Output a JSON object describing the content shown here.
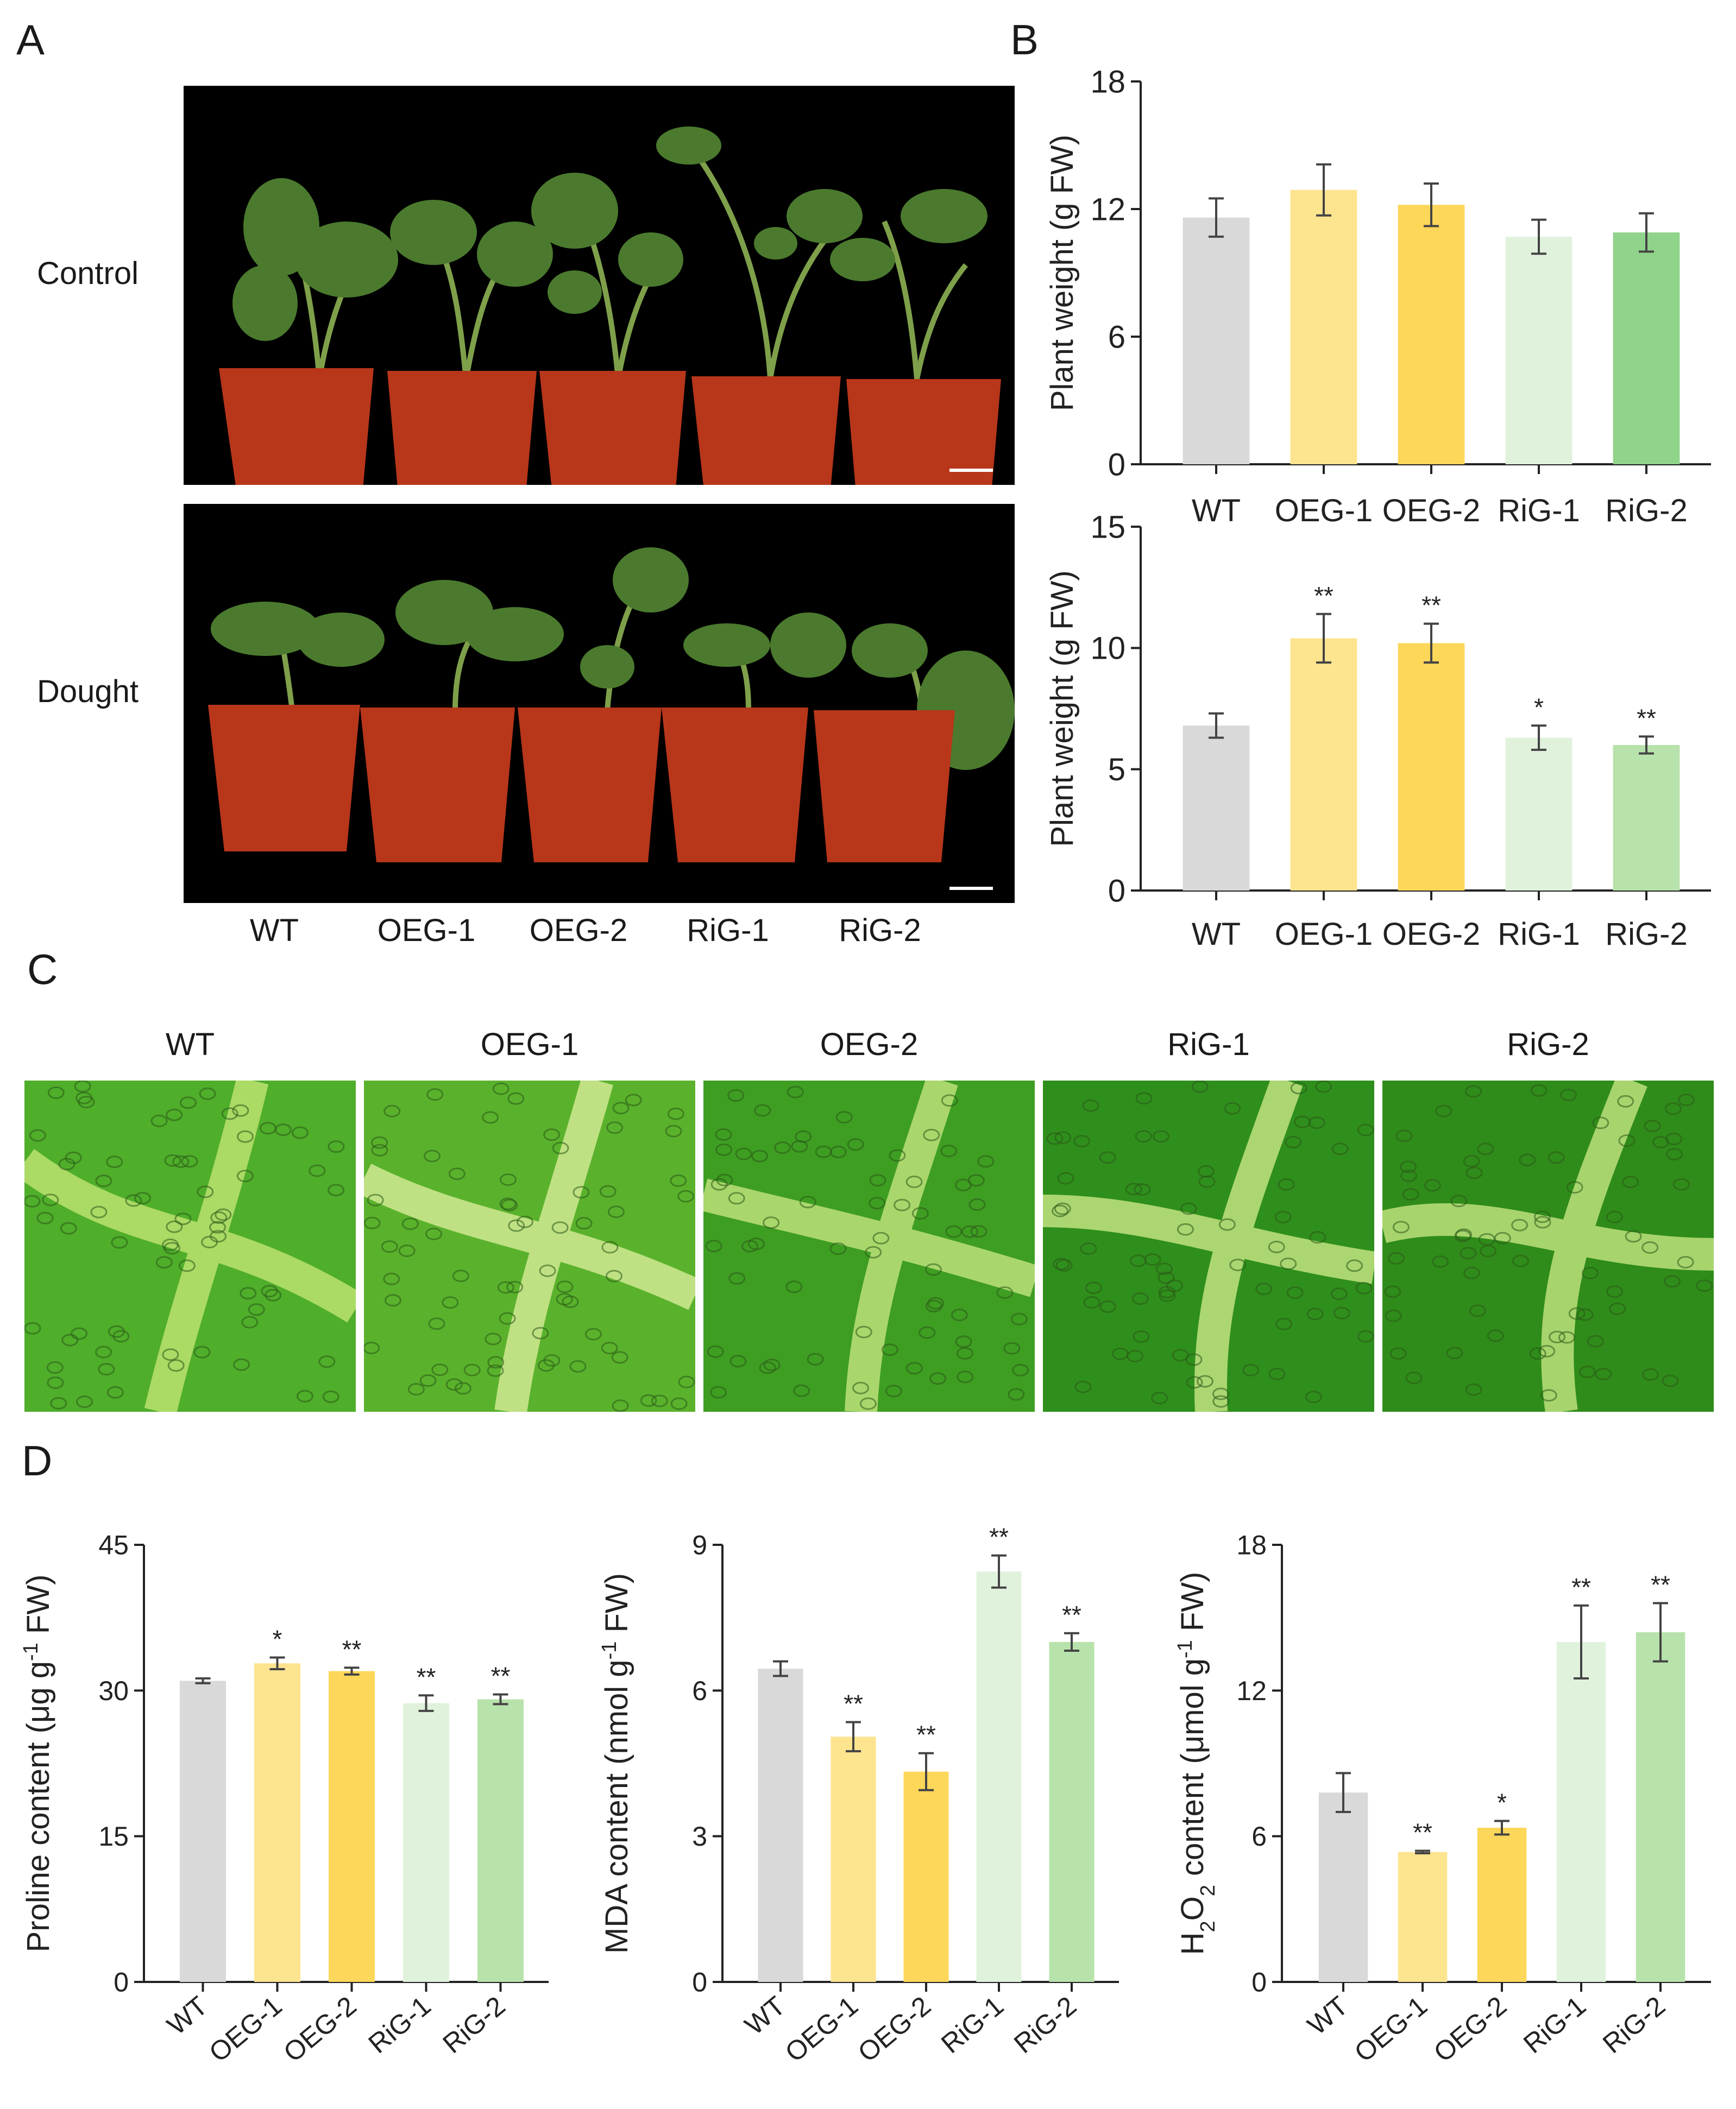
{
  "panels": {
    "a": "A",
    "b": "B",
    "c": "C",
    "d": "D"
  },
  "photos": {
    "row_labels": [
      "Control",
      "Dought"
    ],
    "genotype_labels": [
      "WT",
      "OEG-1",
      "OEG-2",
      "RiG-1",
      "RiG-2"
    ]
  },
  "micrographs": {
    "labels": [
      "WT",
      "OEG-1",
      "OEG-2",
      "RiG-1",
      "RiG-2"
    ]
  },
  "colors": {
    "WT": "#d9d9d9",
    "OEG-1": "#fde48f",
    "OEG-2": "#fdd75a",
    "RiG-1": "#e1f2dc",
    "RiG-2": "#b8e2ab",
    "RiG-2-control": "#90d38a",
    "axis": "#222222",
    "error": "#444444"
  },
  "chart_data": [
    {
      "id": "b-control",
      "type": "bar",
      "title": "",
      "categories": [
        "WT",
        "OEG-1",
        "OEG-2",
        "RiG-1",
        "RiG-2"
      ],
      "values": [
        11.6,
        12.9,
        12.2,
        10.7,
        10.9
      ],
      "errors": [
        0.9,
        1.2,
        1.0,
        0.8,
        0.9
      ],
      "significance": [
        "",
        "",
        "",
        "",
        ""
      ],
      "ylabel": "Plant weight (g FW)",
      "ylim": [
        0,
        18
      ],
      "yticks": [
        "0",
        "6",
        "12",
        "18"
      ],
      "colors": [
        "#d9d9d9",
        "#fde48f",
        "#fdd75a",
        "#e1f2dc",
        "#90d38a"
      ]
    },
    {
      "id": "b-drought",
      "type": "bar",
      "title": "",
      "categories": [
        "WT",
        "OEG-1",
        "OEG-2",
        "RiG-1",
        "RiG-2"
      ],
      "values": [
        6.8,
        10.4,
        10.2,
        6.3,
        6.0
      ],
      "errors": [
        0.5,
        1.0,
        0.8,
        0.5,
        0.35
      ],
      "significance": [
        "",
        "**",
        "**",
        "*",
        "**"
      ],
      "ylabel": "Plant weight (g FW)",
      "ylim": [
        0,
        15
      ],
      "yticks": [
        "0",
        "5",
        "10",
        "15"
      ],
      "colors": [
        "#d9d9d9",
        "#fde48f",
        "#fdd75a",
        "#e1f2dc",
        "#b8e2ab"
      ]
    },
    {
      "id": "d-proline",
      "type": "bar",
      "title": "",
      "categories": [
        "WT",
        "OEG-1",
        "OEG-2",
        "RiG-1",
        "RiG-2"
      ],
      "values": [
        31.0,
        32.8,
        32.0,
        28.7,
        29.1
      ],
      "errors": [
        0.25,
        0.6,
        0.35,
        0.8,
        0.5
      ],
      "significance": [
        "",
        "*",
        "**",
        "**",
        "**"
      ],
      "ylabel_parts": [
        "Proline content (μg g",
        "-1",
        " FW)"
      ],
      "ylim": [
        0,
        45
      ],
      "yticks": [
        "0",
        "15",
        "30",
        "45"
      ],
      "colors": [
        "#d9d9d9",
        "#fde48f",
        "#fdd75a",
        "#e1f2dc",
        "#b8e2ab"
      ]
    },
    {
      "id": "d-mda",
      "type": "bar",
      "title": "",
      "categories": [
        "WT",
        "OEG-1",
        "OEG-2",
        "RiG-1",
        "RiG-2"
      ],
      "values": [
        6.45,
        5.05,
        4.33,
        8.45,
        7.0
      ],
      "errors": [
        0.15,
        0.3,
        0.38,
        0.33,
        0.18
      ],
      "significance": [
        "",
        "**",
        "**",
        "**",
        "**"
      ],
      "ylabel_parts": [
        "MDA content (nmol g",
        "-1",
        " FW)"
      ],
      "ylim": [
        0,
        9
      ],
      "yticks": [
        "0",
        "3",
        "6",
        "9"
      ],
      "colors": [
        "#d9d9d9",
        "#fde48f",
        "#fdd75a",
        "#e1f2dc",
        "#b8e2ab"
      ]
    },
    {
      "id": "d-h2o2",
      "type": "bar",
      "title": "",
      "categories": [
        "WT",
        "OEG-1",
        "OEG-2",
        "RiG-1",
        "RiG-2"
      ],
      "values": [
        7.8,
        5.35,
        6.35,
        14.0,
        14.4
      ],
      "errors": [
        0.8,
        0.05,
        0.28,
        1.5,
        1.2
      ],
      "significance": [
        "",
        "**",
        "*",
        "**",
        "**"
      ],
      "ylabel_parts": [
        "H",
        "2",
        "O",
        "2",
        " content (μmol g",
        "-1",
        " FW)"
      ],
      "ylim": [
        0,
        18
      ],
      "yticks": [
        "0",
        "6",
        "12",
        "18"
      ],
      "colors": [
        "#d9d9d9",
        "#fde48f",
        "#fdd75a",
        "#e1f2dc",
        "#b8e2ab"
      ]
    }
  ]
}
